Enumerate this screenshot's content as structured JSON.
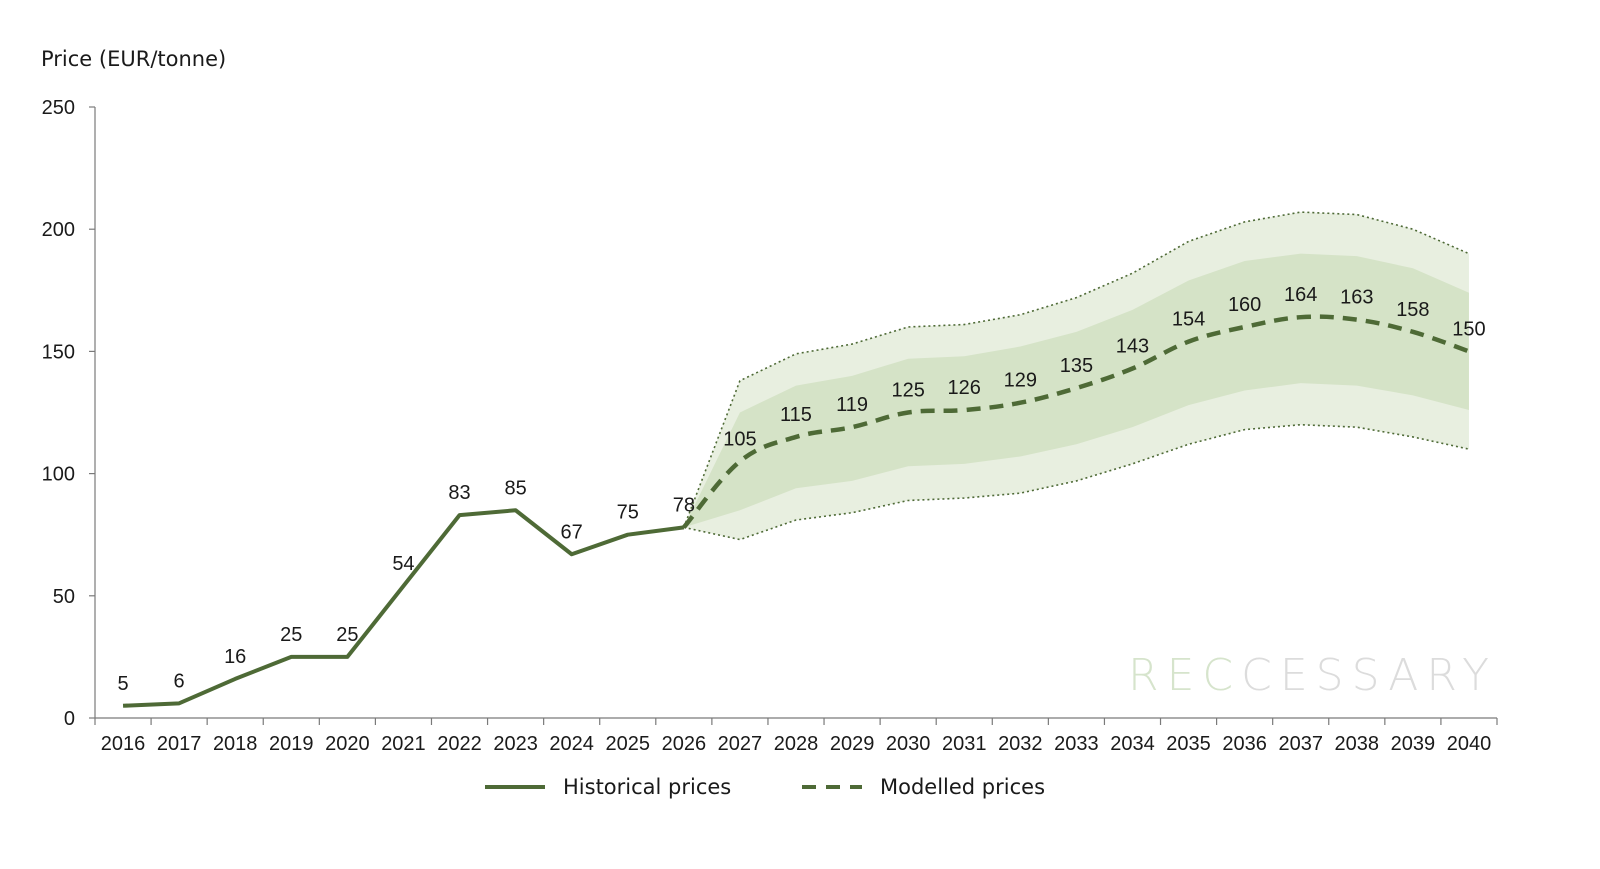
{
  "chart_data": {
    "type": "line",
    "ylabel": "Price (EUR/tonne)",
    "xlabel": "",
    "ylim": [
      0,
      250
    ],
    "yticks": [
      0,
      50,
      100,
      150,
      200,
      250
    ],
    "x": [
      "2016",
      "2017",
      "2018",
      "2019",
      "2020",
      "2021",
      "2022",
      "2023",
      "2024",
      "2025",
      "2026",
      "2027",
      "2028",
      "2029",
      "2030",
      "2031",
      "2032",
      "2033",
      "2034",
      "2035",
      "2036",
      "2037",
      "2038",
      "2039",
      "2040"
    ],
    "series": [
      {
        "name": "Historical prices",
        "style": "solid",
        "x": [
          "2016",
          "2017",
          "2018",
          "2019",
          "2020",
          "2021",
          "2022",
          "2023",
          "2024",
          "2025",
          "2026"
        ],
        "values": [
          5,
          6,
          16,
          25,
          25,
          54,
          83,
          85,
          67,
          75,
          78
        ],
        "labels": [
          "5",
          "6",
          "16",
          "25",
          "25",
          "54",
          "83",
          "85",
          "67",
          "75",
          "78"
        ]
      },
      {
        "name": "Modelled prices",
        "style": "dashed",
        "x": [
          "2026",
          "2027",
          "2028",
          "2029",
          "2030",
          "2031",
          "2032",
          "2033",
          "2034",
          "2035",
          "2036",
          "2037",
          "2038",
          "2039",
          "2040"
        ],
        "values": [
          78,
          105,
          115,
          119,
          125,
          126,
          129,
          135,
          143,
          154,
          160,
          164,
          163,
          158,
          150
        ],
        "labels": [
          "",
          "105",
          "115",
          "119",
          "125",
          "126",
          "129",
          "135",
          "143",
          "154",
          "160",
          "164",
          "163",
          "158",
          "150"
        ]
      }
    ],
    "bands": {
      "x": [
        "2026",
        "2027",
        "2028",
        "2029",
        "2030",
        "2031",
        "2032",
        "2033",
        "2034",
        "2035",
        "2036",
        "2037",
        "2038",
        "2039",
        "2040"
      ],
      "outer_upper": [
        78,
        138,
        149,
        153,
        160,
        161,
        165,
        172,
        182,
        195,
        203,
        207,
        206,
        200,
        190
      ],
      "outer_lower": [
        78,
        73,
        81,
        84,
        89,
        90,
        92,
        97,
        104,
        112,
        118,
        120,
        119,
        115,
        110
      ],
      "inner_upper": [
        78,
        125,
        136,
        140,
        147,
        148,
        152,
        158,
        167,
        179,
        187,
        190,
        189,
        184,
        174
      ],
      "inner_lower": [
        78,
        85,
        94,
        97,
        103,
        104,
        107,
        112,
        119,
        128,
        134,
        137,
        136,
        132,
        126
      ]
    },
    "colors": {
      "line": "#4e6a36",
      "band_outer": "#e8efe0",
      "band_inner": "#d5e3c7",
      "band_edge": "#4e6a36",
      "axis": "#7a7a7a",
      "text": "#1a1a1a"
    },
    "legend": {
      "placement": "bottom-center"
    },
    "grid": false
  },
  "watermark": {
    "part1": "REC",
    "part2": "CESSARY"
  }
}
